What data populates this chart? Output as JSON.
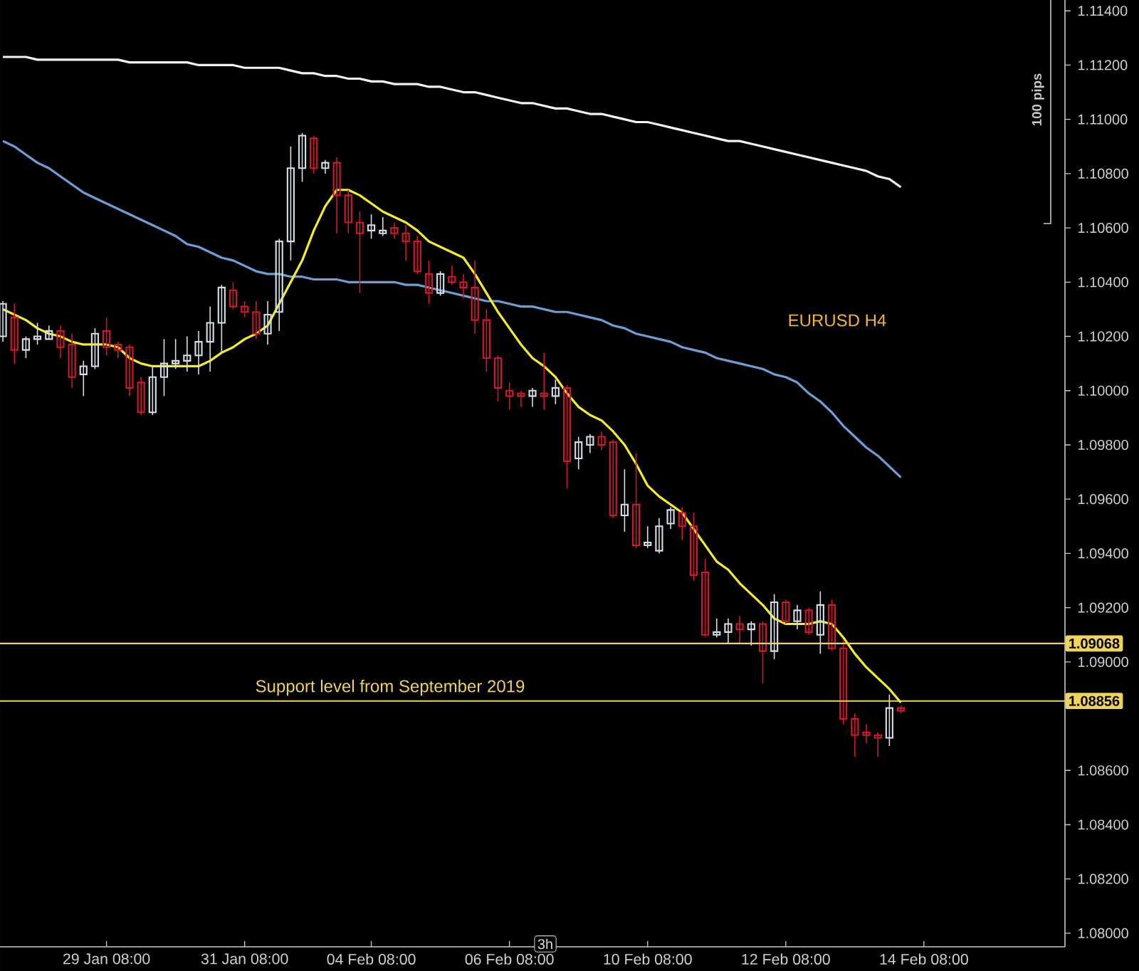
{
  "chart_data": {
    "type": "candlestick",
    "categories": [
      null,
      null,
      null,
      null,
      null,
      null,
      null,
      null,
      null,
      "29 Jan 08:00",
      null,
      null,
      null,
      null,
      null,
      null,
      null,
      null,
      null,
      null,
      null,
      "31 Jan 08:00",
      null,
      null,
      null,
      null,
      null,
      null,
      null,
      null,
      null,
      null,
      "04 Feb 08:00",
      null,
      null,
      null,
      null,
      null,
      null,
      null,
      null,
      null,
      null,
      null,
      "06 Feb 08:00",
      null,
      null,
      null,
      null,
      null,
      null,
      null,
      null,
      null,
      null,
      null,
      "10 Feb 08:00",
      null,
      null,
      null,
      null,
      null,
      null,
      null,
      null,
      null,
      null,
      null,
      "12 Feb 08:00",
      null,
      null,
      null,
      null,
      null,
      null,
      null,
      null,
      null,
      null,
      null,
      "14 Feb 08:00"
    ],
    "ohlc": [
      [
        1.102,
        1.1033,
        1.1018,
        1.1032
      ],
      [
        1.1027,
        1.1032,
        1.101,
        1.1015
      ],
      [
        1.1015,
        1.102,
        1.1012,
        1.1019
      ],
      [
        1.1019,
        1.1025,
        1.1017,
        1.102
      ],
      [
        1.1019,
        1.1024,
        1.1019,
        1.1022
      ],
      [
        1.1022,
        1.1024,
        1.1012,
        1.1016
      ],
      [
        1.1017,
        1.1021,
        1.1001,
        1.1005
      ],
      [
        1.1006,
        1.1011,
        1.0998,
        1.1009
      ],
      [
        1.1009,
        1.1023,
        1.1008,
        1.1021
      ],
      [
        1.1022,
        1.1027,
        1.1013,
        1.1016
      ],
      [
        1.1017,
        1.1018,
        1.1012,
        1.1015
      ],
      [
        1.1016,
        1.1017,
        1.0998,
        1.1001
      ],
      [
        1.1003,
        1.1005,
        1.0991,
        1.0992
      ],
      [
        1.0992,
        1.1009,
        1.0991,
        1.1005
      ],
      [
        1.1005,
        1.1019,
        1.0998,
        1.101
      ],
      [
        1.101,
        1.1019,
        1.1008,
        1.1011
      ],
      [
        1.1011,
        1.102,
        1.1007,
        1.1013
      ],
      [
        1.1013,
        1.1022,
        1.1006,
        1.1018
      ],
      [
        1.1018,
        1.1031,
        1.1007,
        1.1025
      ],
      [
        1.1025,
        1.1039,
        1.1014,
        1.1038
      ],
      [
        1.1037,
        1.104,
        1.103,
        1.1031
      ],
      [
        1.1031,
        1.1033,
        1.1027,
        1.1029
      ],
      [
        1.1029,
        1.1033,
        1.1019,
        1.1021
      ],
      [
        1.1021,
        1.1033,
        1.1017,
        1.1028
      ],
      [
        1.1029,
        1.1056,
        1.1022,
        1.1055
      ],
      [
        1.1055,
        1.109,
        1.1048,
        1.1082
      ],
      [
        1.1082,
        1.1095,
        1.1077,
        1.1094
      ],
      [
        1.1093,
        1.1094,
        1.108,
        1.1082
      ],
      [
        1.1082,
        1.1085,
        1.108,
        1.1084
      ],
      [
        1.1084,
        1.1086,
        1.1058,
        1.1072
      ],
      [
        1.1072,
        1.1074,
        1.1058,
        1.1062
      ],
      [
        1.1062,
        1.1066,
        1.1036,
        1.1058
      ],
      [
        1.1059,
        1.1065,
        1.1056,
        1.1061
      ],
      [
        1.1058,
        1.1064,
        1.1057,
        1.1059
      ],
      [
        1.106,
        1.1062,
        1.1056,
        1.1058
      ],
      [
        1.1058,
        1.1061,
        1.1048,
        1.1055
      ],
      [
        1.1055,
        1.1057,
        1.1043,
        1.1044
      ],
      [
        1.1043,
        1.1048,
        1.1032,
        1.1036
      ],
      [
        1.1036,
        1.1044,
        1.1035,
        1.1043
      ],
      [
        1.1042,
        1.1046,
        1.1039,
        1.104
      ],
      [
        1.104,
        1.1043,
        1.1034,
        1.1038
      ],
      [
        1.1038,
        1.1048,
        1.1021,
        1.1026
      ],
      [
        1.1026,
        1.103,
        1.1007,
        1.1012
      ],
      [
        1.1012,
        1.1013,
        1.0996,
        1.1001
      ],
      [
        1.1,
        1.1003,
        1.0993,
        1.0998
      ],
      [
        1.0999,
        1.1,
        1.0994,
        1.0998
      ],
      [
        1.0998,
        1.1001,
        1.0994,
        1.1
      ],
      [
        1.0999,
        1.1014,
        1.0993,
        1.0998
      ],
      [
        1.0998,
        1.1004,
        1.0995,
        1.1001
      ],
      [
        1.1001,
        1.1002,
        1.0964,
        1.0974
      ],
      [
        1.0975,
        1.0983,
        1.0971,
        1.0981
      ],
      [
        1.098,
        1.0984,
        1.0977,
        1.0983
      ],
      [
        1.0983,
        1.0985,
        1.0978,
        1.098
      ],
      [
        1.0981,
        1.0982,
        1.0953,
        1.0954
      ],
      [
        1.0954,
        1.0971,
        1.0948,
        1.0958
      ],
      [
        1.0958,
        1.0977,
        1.0942,
        1.0943
      ],
      [
        1.0943,
        1.095,
        1.0942,
        1.0944
      ],
      [
        1.0941,
        1.0953,
        1.094,
        1.095
      ],
      [
        1.0951,
        1.0957,
        1.0949,
        1.0956
      ],
      [
        1.0955,
        1.0957,
        1.0945,
        1.095
      ],
      [
        1.095,
        1.0955,
        1.093,
        1.0932
      ],
      [
        1.0933,
        1.0938,
        1.0909,
        1.091
      ],
      [
        1.091,
        1.0916,
        1.0909,
        1.0911
      ],
      [
        1.0911,
        1.0916,
        1.0907,
        1.0914
      ],
      [
        1.0914,
        1.0917,
        1.0907,
        1.0912
      ],
      [
        1.0912,
        1.0915,
        1.0906,
        1.0914
      ],
      [
        1.0914,
        1.0915,
        1.0892,
        1.0904
      ],
      [
        1.0904,
        1.0925,
        1.0901,
        1.0922
      ],
      [
        1.0922,
        1.0923,
        1.0914,
        1.0915
      ],
      [
        1.0915,
        1.0921,
        1.0912,
        1.0919
      ],
      [
        1.0919,
        1.092,
        1.091,
        1.0911
      ],
      [
        1.091,
        1.0926,
        1.0903,
        1.0921
      ],
      [
        1.0921,
        1.0923,
        1.0904,
        1.0905
      ],
      [
        1.0905,
        1.0908,
        1.0877,
        1.0879
      ],
      [
        1.0879,
        1.0881,
        1.0865,
        1.0873
      ],
      [
        1.0874,
        1.0877,
        1.087,
        1.0873
      ],
      [
        1.0873,
        1.0874,
        1.0865,
        1.0872
      ],
      [
        1.0872,
        1.0888,
        1.0869,
        1.0883
      ],
      [
        1.0883,
        1.0884,
        1.0881,
        1.0882
      ],
      null,
      null
    ],
    "series": [
      {
        "type": "line",
        "color": "#f2f2f2",
        "values": [
          1.1123,
          1.1123,
          1.1123,
          1.1122,
          1.1122,
          1.1122,
          1.1122,
          1.1122,
          1.1122,
          1.1122,
          1.1122,
          1.1121,
          1.1121,
          1.1121,
          1.1121,
          1.1121,
          1.1121,
          1.112,
          1.112,
          1.112,
          1.112,
          1.1119,
          1.1119,
          1.1119,
          1.1119,
          1.1118,
          1.1117,
          1.1117,
          1.1116,
          1.1116,
          1.1115,
          1.1115,
          1.1114,
          1.1114,
          1.1113,
          1.1113,
          1.1113,
          1.1112,
          1.1112,
          1.1111,
          1.111,
          1.111,
          1.1109,
          1.1108,
          1.1107,
          1.1106,
          1.1106,
          1.1105,
          1.1104,
          1.1104,
          1.1103,
          1.1102,
          1.1102,
          1.1101,
          1.11,
          1.1099,
          1.1099,
          1.1098,
          1.1097,
          1.1096,
          1.1095,
          1.1094,
          1.1093,
          1.1092,
          1.1092,
          1.1091,
          1.109,
          1.1089,
          1.1088,
          1.1087,
          1.1086,
          1.1085,
          1.1084,
          1.1083,
          1.1082,
          1.1081,
          1.1079,
          1.1078,
          1.1075,
          null,
          null
        ]
      },
      {
        "type": "line",
        "color": "#6b9fd6",
        "values": [
          1.1092,
          1.109,
          1.1087,
          1.1084,
          1.1082,
          1.1079,
          1.1076,
          1.1073,
          1.1071,
          1.1069,
          1.1067,
          1.1065,
          1.1063,
          1.1061,
          1.1059,
          1.1057,
          1.1054,
          1.1053,
          1.1051,
          1.1049,
          1.1048,
          1.1046,
          1.1044,
          1.1043,
          1.1043,
          1.1042,
          1.1042,
          1.1041,
          1.1041,
          1.1041,
          1.104,
          1.104,
          1.104,
          1.104,
          1.104,
          1.1039,
          1.1039,
          1.1038,
          1.1037,
          1.1036,
          1.1035,
          1.1034,
          1.1033,
          1.1033,
          1.1032,
          1.1031,
          1.1031,
          1.103,
          1.1029,
          1.1029,
          1.1028,
          1.1027,
          1.1026,
          1.1024,
          1.1023,
          1.1021,
          1.102,
          1.1019,
          1.1018,
          1.1016,
          1.1015,
          1.1014,
          1.1012,
          1.1011,
          1.101,
          1.1009,
          1.1008,
          1.1006,
          1.1005,
          1.1003,
          1.0999,
          1.0996,
          1.0992,
          1.0987,
          1.0983,
          1.0979,
          1.0976,
          1.0972,
          1.0968,
          null,
          null
        ]
      },
      {
        "type": "line",
        "color": "#f5ec2a",
        "values": [
          1.103,
          1.1028,
          1.1026,
          1.1023,
          1.1021,
          1.102,
          1.1018,
          1.1017,
          1.1017,
          1.1017,
          1.1016,
          1.1012,
          1.101,
          1.1009,
          1.1009,
          1.1009,
          1.1009,
          1.1009,
          1.1011,
          1.1014,
          1.1016,
          1.1019,
          1.1021,
          1.1024,
          1.1032,
          1.104,
          1.1048,
          1.1059,
          1.1068,
          1.1074,
          1.1074,
          1.1072,
          1.1069,
          1.1066,
          1.1064,
          1.1062,
          1.1059,
          1.1055,
          1.1053,
          1.1051,
          1.1049,
          1.1043,
          1.1036,
          1.1029,
          1.1023,
          1.1017,
          1.1012,
          1.1009,
          1.1005,
          1.0999,
          1.0994,
          1.0991,
          1.0989,
          1.0985,
          1.098,
          1.0973,
          1.0965,
          1.0961,
          1.0958,
          1.0955,
          1.0949,
          1.0943,
          1.0937,
          1.0934,
          1.0929,
          1.0925,
          1.0921,
          1.0916,
          1.0914,
          1.0914,
          1.0914,
          1.0915,
          1.0914,
          1.0909,
          1.0903,
          1.0898,
          1.0894,
          1.089,
          1.0885,
          null,
          null
        ]
      }
    ],
    "ylim": [
      1.0795,
      1.1144
    ],
    "yticks": [
      {
        "value": 1.08,
        "label": "1.08000"
      },
      {
        "value": 1.082,
        "label": "1.08200"
      },
      {
        "value": 1.084,
        "label": "1.08400"
      },
      {
        "value": 1.086,
        "label": "1.08600"
      },
      {
        "value": 1.09,
        "label": "1.09000"
      },
      {
        "value": 1.092,
        "label": "1.09200"
      },
      {
        "value": 1.094,
        "label": "1.09400"
      },
      {
        "value": 1.096,
        "label": "1.09600"
      },
      {
        "value": 1.098,
        "label": "1.09800"
      },
      {
        "value": 1.1,
        "label": "1.10000"
      },
      {
        "value": 1.102,
        "label": "1.10200"
      },
      {
        "value": 1.104,
        "label": "1.10400"
      },
      {
        "value": 1.106,
        "label": "1.10600"
      },
      {
        "value": 1.108,
        "label": "1.10800"
      },
      {
        "value": 1.11,
        "label": "1.11000"
      },
      {
        "value": 1.112,
        "label": "1.11200"
      },
      {
        "value": 1.114,
        "label": "1.11400"
      }
    ],
    "ref_lines": [
      {
        "axis": "y",
        "value": 1.09068,
        "label": "1.09068",
        "color": "#f0d35a"
      },
      {
        "axis": "y",
        "value": 1.08856,
        "label": "1.08856",
        "color": "#f0d35a"
      }
    ],
    "annotations": [
      "EURUSD H4",
      "Support level from September 2019",
      "100 pips",
      "3h"
    ],
    "grid": false
  }
}
